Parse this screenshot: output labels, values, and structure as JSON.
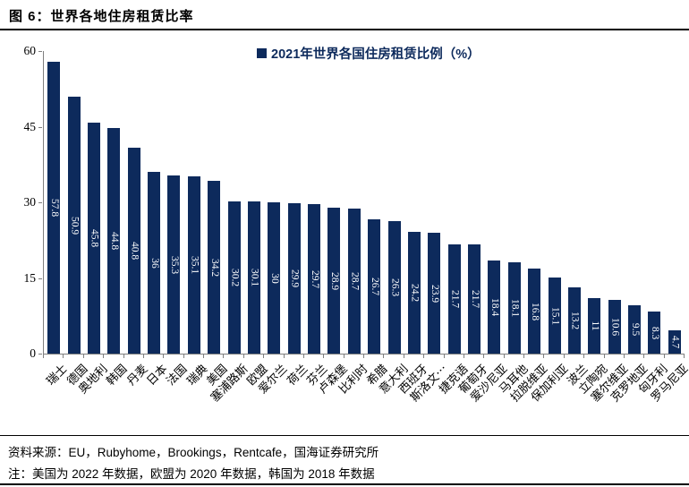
{
  "figure": {
    "title": "图 6：世界各地住房租赁比率",
    "source": "资料来源：EU，Rubyhome，Brookings，Rentcafe，国海证券研究所",
    "note": "注：美国为 2022 年数据，欧盟为 2020 年数据，韩国为 2018 年数据"
  },
  "colors": {
    "bar": "#0d2a5c",
    "legend_text": "#0d2a5c",
    "axis": "#7f7f7f",
    "value_label": "#ffffff"
  },
  "chart_data": {
    "type": "bar",
    "title": "2021年世界各国住房租赁比例（%）",
    "categories": [
      "瑞士",
      "德国",
      "奥地利",
      "韩国",
      "丹麦",
      "日本",
      "法国",
      "瑞典",
      "美国",
      "塞浦路斯",
      "欧盟",
      "爱尔兰",
      "荷兰",
      "芬兰",
      "卢森堡",
      "比利时",
      "希腊",
      "意大利",
      "西班牙",
      "斯洛文⋯",
      "捷克语",
      "葡萄牙",
      "爱沙尼亚",
      "马耳他",
      "拉脱维亚",
      "保加利亚",
      "波兰",
      "立陶宛",
      "塞尔维亚",
      "克罗地亚",
      "匈牙利",
      "罗马尼亚"
    ],
    "values": [
      57.8,
      50.9,
      45.8,
      44.8,
      40.8,
      36,
      35.3,
      35.1,
      34.2,
      30.2,
      30.1,
      30,
      29.9,
      29.7,
      28.9,
      28.7,
      26.7,
      26.3,
      24.2,
      23.9,
      21.7,
      21.7,
      18.4,
      18.1,
      16.8,
      15.1,
      13.2,
      11,
      10.6,
      9.5,
      8.3,
      4.7
    ],
    "xlabel": "",
    "ylabel": "",
    "ylim": [
      0,
      60
    ],
    "yticks": [
      0,
      15,
      30,
      45,
      60
    ],
    "grid": false,
    "legend_position": "top-center",
    "value_labels": "inside-center-vertical"
  }
}
